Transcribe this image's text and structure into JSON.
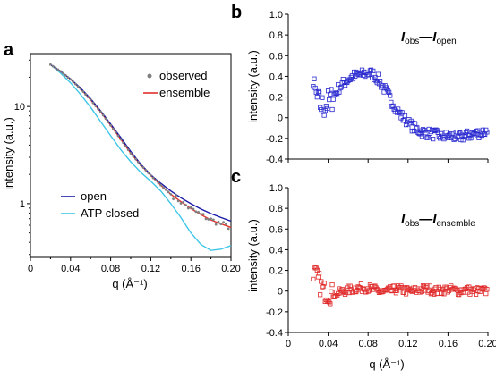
{
  "panels": [
    {
      "id": "a",
      "panel_label": "a",
      "chart_data": {
        "type": "line",
        "xlabel": "q (Å⁻¹)",
        "ylabel": "intensity (a.u.)",
        "xlim": [
          0,
          0.2
        ],
        "ylim": [
          0.28,
          35
        ],
        "yscale": "log",
        "xticks": [
          0,
          0.04,
          0.08,
          0.12,
          0.16,
          0.2
        ],
        "xtick_labels": [
          "0",
          "0.04",
          "0.08",
          "0.12",
          "0.16",
          "0.20"
        ],
        "yticks": [
          1,
          10
        ],
        "ytick_labels": [
          "1",
          "10"
        ],
        "series": [
          {
            "name": "observed",
            "kind": "scatter",
            "color": "#808080",
            "x": [
              0.02,
              0.03,
              0.04,
              0.05,
              0.06,
              0.07,
              0.08,
              0.09,
              0.1,
              0.11,
              0.12,
              0.13,
              0.14,
              0.15,
              0.16,
              0.17,
              0.18,
              0.19,
              0.2
            ],
            "y": [
              27,
              23,
              19,
              15.2,
              11.7,
              8.8,
              6.4,
              4.6,
              3.3,
              2.5,
              1.95,
              1.55,
              1.25,
              1.05,
              0.88,
              0.77,
              0.68,
              0.62,
              0.57
            ]
          },
          {
            "name": "ensemble",
            "kind": "line",
            "color": "#e0302a",
            "x": [
              0.02,
              0.03,
              0.04,
              0.05,
              0.06,
              0.07,
              0.08,
              0.09,
              0.1,
              0.11,
              0.12,
              0.13,
              0.14,
              0.15,
              0.16,
              0.17,
              0.18,
              0.19,
              0.2
            ],
            "y": [
              27,
              23,
              19,
              15.2,
              11.7,
              8.8,
              6.4,
              4.6,
              3.3,
              2.5,
              1.95,
              1.55,
              1.25,
              1.05,
              0.89,
              0.77,
              0.68,
              0.62,
              0.57
            ]
          },
          {
            "name": "open",
            "kind": "line",
            "color": "#1a1aa8",
            "x": [
              0.02,
              0.03,
              0.04,
              0.05,
              0.06,
              0.07,
              0.08,
              0.09,
              0.1,
              0.11,
              0.12,
              0.13,
              0.14,
              0.15,
              0.16,
              0.17,
              0.18,
              0.19,
              0.2
            ],
            "y": [
              27,
              23,
              19.2,
              15.5,
              12,
              9,
              6.6,
              4.8,
              3.45,
              2.55,
              1.98,
              1.62,
              1.35,
              1.15,
              1.0,
              0.88,
              0.79,
              0.72,
              0.66
            ]
          },
          {
            "name": "ATP closed",
            "kind": "line",
            "color": "#3ec6e8",
            "x": [
              0.02,
              0.03,
              0.04,
              0.05,
              0.06,
              0.07,
              0.08,
              0.09,
              0.1,
              0.11,
              0.12,
              0.13,
              0.14,
              0.15,
              0.16,
              0.17,
              0.18,
              0.19,
              0.2
            ],
            "y": [
              27,
              22,
              17.5,
              13.3,
              9.8,
              7.0,
              5.0,
              3.6,
              2.7,
              2.1,
              1.7,
              1.35,
              1.0,
              0.72,
              0.5,
              0.38,
              0.33,
              0.34,
              0.37
            ]
          }
        ]
      }
    },
    {
      "id": "b",
      "panel_label": "b",
      "annotation": {
        "main1": "I",
        "sub1": "obs",
        "dash": "—",
        "main2": "I",
        "sub2": "open"
      },
      "chart_data": {
        "type": "scatter",
        "xlabel": "",
        "ylabel": "intensity (a.u.)",
        "xlim": [
          0,
          0.2
        ],
        "ylim": [
          -0.4,
          1.0
        ],
        "yticks": [
          -0.4,
          -0.2,
          0,
          0.2,
          0.4,
          0.6,
          0.8,
          1.0
        ],
        "ytick_labels": [
          "-0.4",
          "-0.2",
          "0",
          "0.2",
          "0.4",
          "0.6",
          "0.8",
          "1.0"
        ],
        "xticks": [
          0,
          0.04,
          0.08,
          0.12,
          0.16,
          0.2
        ],
        "color": "#2a2ad0",
        "x": [
          0.025,
          0.03,
          0.035,
          0.04,
          0.045,
          0.05,
          0.055,
          0.06,
          0.065,
          0.07,
          0.075,
          0.08,
          0.085,
          0.09,
          0.095,
          0.1,
          0.105,
          0.11,
          0.115,
          0.12,
          0.125,
          0.13,
          0.135,
          0.14,
          0.145,
          0.15,
          0.155,
          0.16,
          0.165,
          0.17,
          0.175,
          0.18,
          0.185,
          0.19,
          0.195,
          0.2
        ],
        "y": [
          0.3,
          0.15,
          0.1,
          0.15,
          0.2,
          0.28,
          0.33,
          0.37,
          0.4,
          0.41,
          0.42,
          0.43,
          0.42,
          0.37,
          0.3,
          0.22,
          0.14,
          0.06,
          0.0,
          -0.05,
          -0.09,
          -0.12,
          -0.14,
          -0.15,
          -0.16,
          -0.17,
          -0.18,
          -0.18,
          -0.18,
          -0.19,
          -0.18,
          -0.17,
          -0.16,
          -0.15,
          -0.14,
          -0.13
        ],
        "noise": 0.05,
        "points_per_x": 5
      }
    },
    {
      "id": "c",
      "panel_label": "c",
      "annotation": {
        "main1": "I",
        "sub1": "obs",
        "dash": "—",
        "main2": "I",
        "sub2": "ensemble"
      },
      "chart_data": {
        "type": "scatter",
        "xlabel": "q (Å⁻¹)",
        "ylabel": "intensity (a.u.)",
        "xlim": [
          0,
          0.2
        ],
        "ylim": [
          -0.4,
          1.0
        ],
        "yticks": [
          -0.4,
          -0.2,
          0,
          0.2,
          0.4,
          0.6,
          0.8,
          1.0
        ],
        "ytick_labels": [
          "-0.4",
          "-0.2",
          "0",
          "0.2",
          "0.4",
          "0.6",
          "0.8",
          "1.0"
        ],
        "xticks": [
          0,
          0.04,
          0.08,
          0.12,
          0.16,
          0.2
        ],
        "xtick_labels": [
          "0",
          "0.04",
          "0.08",
          "0.12",
          "0.16",
          "0.20"
        ],
        "color": "#e02a2a",
        "x": [
          0.025,
          0.03,
          0.035,
          0.04,
          0.045,
          0.05,
          0.055,
          0.06,
          0.065,
          0.07,
          0.075,
          0.08,
          0.085,
          0.09,
          0.095,
          0.1,
          0.105,
          0.11,
          0.115,
          0.12,
          0.125,
          0.13,
          0.135,
          0.14,
          0.145,
          0.15,
          0.155,
          0.16,
          0.165,
          0.17,
          0.175,
          0.18,
          0.185,
          0.19,
          0.195,
          0.2
        ],
        "y": [
          0.2,
          0.1,
          0.0,
          -0.02,
          -0.03,
          -0.02,
          0.0,
          0.01,
          0.02,
          0.03,
          0.03,
          0.03,
          0.02,
          0.0,
          -0.01,
          0.0,
          0.01,
          0.02,
          0.01,
          0.0,
          0.0,
          0.01,
          0.02,
          0.02,
          0.01,
          0.0,
          0.01,
          0.02,
          0.01,
          0.0,
          0.01,
          0.01,
          0.0,
          0.0,
          0.0,
          0.0
        ],
        "noise": 0.04,
        "points_per_x": 5
      }
    }
  ]
}
